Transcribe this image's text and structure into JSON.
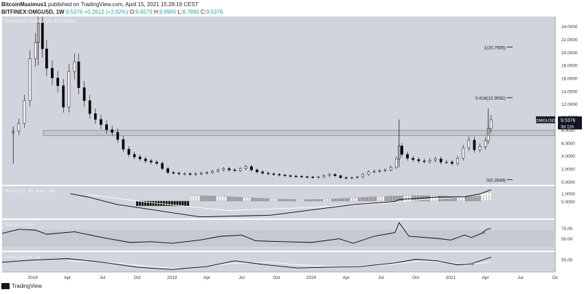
{
  "header": {
    "publisher": "BitcoinMaximus1",
    "published_text": "published on TradingView.com, April 15, 2021 15:28:19 CEST",
    "symbol_line": "BITFINEX:OMGUSD, 1W",
    "price": "9.5376",
    "change": "+0.2612 (+2.82%)",
    "o_label": "O:",
    "o": "9.6579",
    "h_label": "H:",
    "h": "9.9965",
    "l_label": "L:",
    "l": "8.7890",
    "c_label": "C:",
    "c": "9.5376"
  },
  "footer": {
    "brand": "TradingView"
  },
  "colors": {
    "plot_bg": "#d1d4dc",
    "rsi_band": "#c6c9d1",
    "candle_up": "#ffffff",
    "candle_down": "#000000",
    "line": "#000000",
    "signal": "#ffffff",
    "fib": "#000000",
    "support_zone": "#c2c5cc",
    "hist_neg": "#000000",
    "hist_pos_strong": "#ffffff",
    "hist_pos_weak": "#9e9e9e",
    "arrow": "#4caf50"
  },
  "chart_data": {
    "type": "candlestick",
    "main_title": "OmiseGo / Dollar, 1W, BITFINEX",
    "x_ticks": [
      "2018",
      "Apr",
      "Jul",
      "Oct",
      "2019",
      "Apr",
      "Jul",
      "Oct",
      "2020",
      "Apr",
      "Jul",
      "Oct",
      "2021",
      "Apr",
      "Jul",
      "Oc"
    ],
    "y_ticks": [
      "0.0000",
      "2.0000",
      "4.0000",
      "6.0000",
      "8.0000",
      "10.0000",
      "12.0000",
      "14.0000",
      "16.0000",
      "18.0000",
      "20.0000",
      "22.0000",
      "24.0000"
    ],
    "y_range": [
      -0.5,
      25.5
    ],
    "price_label": {
      "symbol": "OMGUSD",
      "value": "9.5376",
      "timer": "3d 11h",
      "y": 9.5376
    },
    "support_zone": [
      7.1,
      7.9
    ],
    "fib_levels": [
      {
        "label": "1(20.7935)",
        "y": 20.79
      },
      {
        "label": "0.618(12.9592)",
        "y": 12.96
      },
      {
        "label": "0(0.2849)",
        "y": 0.28
      }
    ],
    "price_path": [
      [
        2017.78,
        7.5
      ],
      [
        2017.86,
        7.8
      ],
      [
        2017.9,
        9.0
      ],
      [
        2017.94,
        12.5
      ],
      [
        2017.98,
        19.0
      ],
      [
        2018.02,
        21.5
      ],
      [
        2018.04,
        24.5
      ],
      [
        2018.07,
        20.5
      ],
      [
        2018.1,
        17.5
      ],
      [
        2018.14,
        16.0
      ],
      [
        2018.18,
        14.8
      ],
      [
        2018.22,
        11.5
      ],
      [
        2018.26,
        17.0
      ],
      [
        2018.3,
        18.5
      ],
      [
        2018.33,
        14.5
      ],
      [
        2018.37,
        12.5
      ],
      [
        2018.41,
        10.5
      ],
      [
        2018.45,
        9.6
      ],
      [
        2018.49,
        8.8
      ],
      [
        2018.53,
        8.0
      ],
      [
        2018.57,
        7.6
      ],
      [
        2018.61,
        6.5
      ],
      [
        2018.65,
        5.0
      ],
      [
        2018.69,
        4.2
      ],
      [
        2018.73,
        3.8
      ],
      [
        2018.77,
        3.5
      ],
      [
        2018.81,
        3.2
      ],
      [
        2018.85,
        3.0
      ],
      [
        2018.89,
        2.8
      ],
      [
        2018.93,
        2.0
      ],
      [
        2018.97,
        1.4
      ],
      [
        2019.01,
        1.3
      ],
      [
        2019.05,
        1.2
      ],
      [
        2019.09,
        1.2
      ],
      [
        2019.13,
        1.1
      ],
      [
        2019.17,
        1.2
      ],
      [
        2019.21,
        1.3
      ],
      [
        2019.25,
        1.4
      ],
      [
        2019.29,
        1.6
      ],
      [
        2019.33,
        1.8
      ],
      [
        2019.37,
        2.0
      ],
      [
        2019.41,
        1.8
      ],
      [
        2019.45,
        1.7
      ],
      [
        2019.49,
        2.0
      ],
      [
        2019.53,
        2.3
      ],
      [
        2019.57,
        1.8
      ],
      [
        2019.61,
        1.5
      ],
      [
        2019.65,
        1.3
      ],
      [
        2019.69,
        1.2
      ],
      [
        2019.73,
        1.1
      ],
      [
        2019.77,
        1.0
      ],
      [
        2019.81,
        0.9
      ],
      [
        2019.85,
        0.85
      ],
      [
        2019.89,
        0.8
      ],
      [
        2019.93,
        0.75
      ],
      [
        2019.97,
        0.7
      ],
      [
        2020.01,
        0.65
      ],
      [
        2020.05,
        0.7
      ],
      [
        2020.09,
        0.9
      ],
      [
        2020.13,
        1.1
      ],
      [
        2020.17,
        0.9
      ],
      [
        2020.21,
        0.6
      ],
      [
        2020.25,
        0.55
      ],
      [
        2020.29,
        0.6
      ],
      [
        2020.33,
        0.7
      ],
      [
        2020.37,
        1.1
      ],
      [
        2020.41,
        1.5
      ],
      [
        2020.45,
        1.6
      ],
      [
        2020.49,
        1.7
      ],
      [
        2020.53,
        1.8
      ],
      [
        2020.57,
        2.2
      ],
      [
        2020.61,
        3.5
      ],
      [
        2020.63,
        5.5
      ],
      [
        2020.65,
        4.2
      ],
      [
        2020.69,
        3.6
      ],
      [
        2020.73,
        3.4
      ],
      [
        2020.77,
        3.2
      ],
      [
        2020.81,
        3.1
      ],
      [
        2020.85,
        3.3
      ],
      [
        2020.89,
        3.5
      ],
      [
        2020.93,
        3.0
      ],
      [
        2020.97,
        3.0
      ],
      [
        2021.01,
        2.8
      ],
      [
        2021.05,
        3.6
      ],
      [
        2021.09,
        5.2
      ],
      [
        2021.13,
        6.4
      ],
      [
        2021.17,
        4.9
      ],
      [
        2021.21,
        5.4
      ],
      [
        2021.25,
        6.3
      ],
      [
        2021.27,
        8.2
      ],
      [
        2021.29,
        9.5376
      ]
    ],
    "spikes": [
      {
        "x": 2020.63,
        "high": 9.6,
        "low": 2.2
      },
      {
        "x": 2021.27,
        "high": 11.3,
        "low": 7.0
      },
      {
        "x": 2018.04,
        "high": 25.0,
        "low": 18.0
      },
      {
        "x": 2017.86,
        "high": 8.5,
        "low": 2.8
      }
    ],
    "indicators": [
      {
        "name": "MACD (21, 50, close, 24)",
        "y_ticks": [
          "1.0000",
          "0.0000"
        ],
        "macd_line": [
          [
            2018.27,
            0.95
          ],
          [
            2018.4,
            0.5
          ],
          [
            2018.6,
            -0.4
          ],
          [
            2019.2,
            -2.0
          ],
          [
            2019.7,
            -1.8
          ],
          [
            2020.3,
            -0.45
          ],
          [
            2020.6,
            -0.05
          ],
          [
            2020.63,
            0.2
          ],
          [
            2020.9,
            0.5
          ],
          [
            2021.1,
            0.55
          ],
          [
            2021.2,
            0.85
          ],
          [
            2021.29,
            1.45
          ]
        ],
        "signal_line": [
          [
            2018.4,
            0.8
          ],
          [
            2018.8,
            -0.1
          ],
          [
            2019.4,
            -1.2
          ],
          [
            2020.0,
            -0.8
          ],
          [
            2020.5,
            -0.3
          ],
          [
            2020.8,
            0.2
          ],
          [
            2021.0,
            0.4
          ],
          [
            2021.29,
            0.9
          ]
        ],
        "histogram_range": [
          2018.75,
          2021.29
        ]
      },
      {
        "name": "RSI (14, close)",
        "y_ticks": [
          "75.00",
          "50.00"
        ],
        "band": [
          30,
          70
        ],
        "rsi_line": [
          [
            2017.78,
            62
          ],
          [
            2017.9,
            72
          ],
          [
            2018.02,
            70
          ],
          [
            2018.1,
            60
          ],
          [
            2018.3,
            66
          ],
          [
            2018.5,
            52
          ],
          [
            2018.7,
            40
          ],
          [
            2018.85,
            42
          ],
          [
            2019.0,
            38
          ],
          [
            2019.2,
            46
          ],
          [
            2019.35,
            55
          ],
          [
            2019.5,
            58
          ],
          [
            2019.6,
            44
          ],
          [
            2019.8,
            42
          ],
          [
            2020.0,
            40
          ],
          [
            2020.2,
            49
          ],
          [
            2020.3,
            38
          ],
          [
            2020.45,
            55
          ],
          [
            2020.6,
            64
          ],
          [
            2020.63,
            88
          ],
          [
            2020.7,
            55
          ],
          [
            2020.9,
            50
          ],
          [
            2021.0,
            46
          ],
          [
            2021.1,
            58
          ],
          [
            2021.15,
            52
          ],
          [
            2021.22,
            62
          ],
          [
            2021.26,
            72
          ],
          [
            2021.29,
            74
          ]
        ],
        "marker_x": 2021.24
      },
      {
        "name": "Stoch (14, 28, 14)",
        "y_ticks": [
          "50.00"
        ],
        "k_line": [
          [
            2017.78,
            42
          ],
          [
            2018.0,
            48
          ],
          [
            2018.25,
            52
          ],
          [
            2018.5,
            42
          ],
          [
            2018.75,
            28
          ],
          [
            2019.0,
            22
          ],
          [
            2019.25,
            30
          ],
          [
            2019.45,
            46
          ],
          [
            2019.65,
            36
          ],
          [
            2019.9,
            26
          ],
          [
            2020.1,
            28
          ],
          [
            2020.35,
            30
          ],
          [
            2020.6,
            40
          ],
          [
            2020.75,
            50
          ],
          [
            2020.9,
            46
          ],
          [
            2021.05,
            35
          ],
          [
            2021.15,
            38
          ],
          [
            2021.29,
            56
          ]
        ],
        "d_line": [
          [
            2018.25,
            46
          ],
          [
            2018.6,
            40
          ],
          [
            2018.9,
            28
          ],
          [
            2019.1,
            24
          ],
          [
            2019.4,
            38
          ],
          [
            2019.7,
            42
          ],
          [
            2019.9,
            35
          ],
          [
            2020.2,
            30
          ],
          [
            2020.5,
            34
          ],
          [
            2020.8,
            46
          ],
          [
            2021.0,
            40
          ],
          [
            2021.2,
            38
          ],
          [
            2021.29,
            44
          ]
        ],
        "marker_x": 2021.16
      }
    ]
  }
}
